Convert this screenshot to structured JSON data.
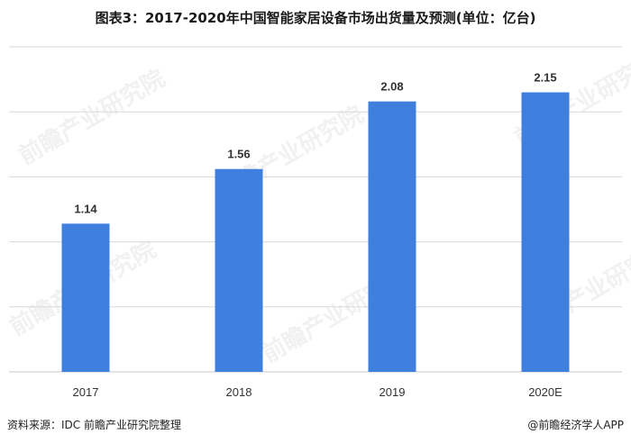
{
  "chart_data": {
    "type": "bar",
    "title": "图表3：2017-2020年中国智能家居设备市场出货量及预测(单位：亿台)",
    "categories": [
      "2017",
      "2018",
      "2019",
      "2020E"
    ],
    "values": [
      1.14,
      1.56,
      2.08,
      2.15
    ],
    "data_labels": [
      "1.14",
      "1.56",
      "2.08",
      "2.15"
    ],
    "xlabel": "",
    "ylabel": "",
    "ylim": [
      0,
      2.5
    ],
    "grid": true,
    "colors": {
      "bar": "#3f7fdd"
    }
  },
  "footer": {
    "source": "资料来源：IDC 前瞻产业研究院整理",
    "brand": "@前瞻经济学人APP"
  },
  "watermark": "前瞻产业研究院"
}
